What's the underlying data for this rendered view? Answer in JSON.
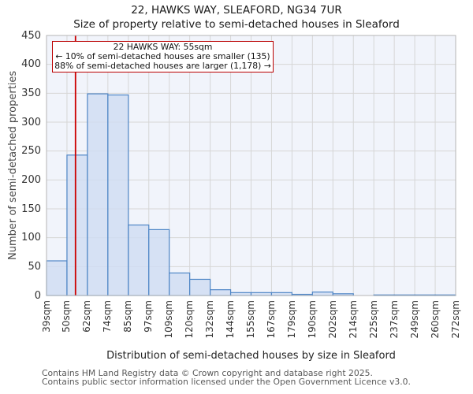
{
  "title": "22, HAWKS WAY, SLEAFORD, NG34 7UR",
  "subtitle": "Size of property relative to semi-detached houses in Sleaford",
  "annotation": {
    "line1": "22 HAWKS WAY: 55sqm",
    "line2": "← 10% of semi-detached houses are smaller (135)",
    "line3": "88% of semi-detached houses are larger (1,178) →"
  },
  "chart_data": {
    "type": "bar",
    "title": "22, HAWKS WAY, SLEAFORD, NG34 7UR",
    "subtitle": "Size of property relative to semi-detached houses in Sleaford",
    "xlabel": "Distribution of semi-detached houses by size in Sleaford",
    "ylabel": "Number of semi-detached properties",
    "bin_edges_sqm": [
      39,
      50,
      62,
      74,
      85,
      97,
      109,
      120,
      132,
      144,
      155,
      167,
      179,
      190,
      202,
      214,
      225,
      237,
      249,
      260,
      272
    ],
    "bin_labels": [
      "39sqm",
      "50sqm",
      "62sqm",
      "74sqm",
      "85sqm",
      "97sqm",
      "109sqm",
      "120sqm",
      "132sqm",
      "144sqm",
      "155sqm",
      "167sqm",
      "179sqm",
      "190sqm",
      "202sqm",
      "214sqm",
      "225sqm",
      "237sqm",
      "249sqm",
      "260sqm",
      "272sqm"
    ],
    "counts": [
      60,
      243,
      349,
      347,
      122,
      114,
      39,
      28,
      10,
      5,
      5,
      5,
      2,
      6,
      3,
      0,
      1,
      1,
      1,
      1
    ],
    "marker_sqm": 55,
    "marker_label": "22 HAWKS WAY: 55sqm",
    "pct_smaller": 10,
    "count_smaller": 135,
    "pct_larger": 88,
    "count_larger": 1178,
    "ylim": [
      0,
      450
    ],
    "ytick_step": 50,
    "grid": true,
    "legend": "none",
    "colors": {
      "bar_fill": "#cfddf2",
      "bar_edge": "#4f86c6",
      "marker_line": "#cc0000",
      "annotation_border": "#bb0000",
      "plot_bg": "#f1f4fb",
      "grid": "#d6d6d6",
      "border": "#b5b5b5"
    }
  },
  "footer": {
    "line1": "Contains HM Land Registry data © Crown copyright and database right 2025.",
    "line2": "Contains public sector information licensed under the Open Government Licence v3.0."
  }
}
